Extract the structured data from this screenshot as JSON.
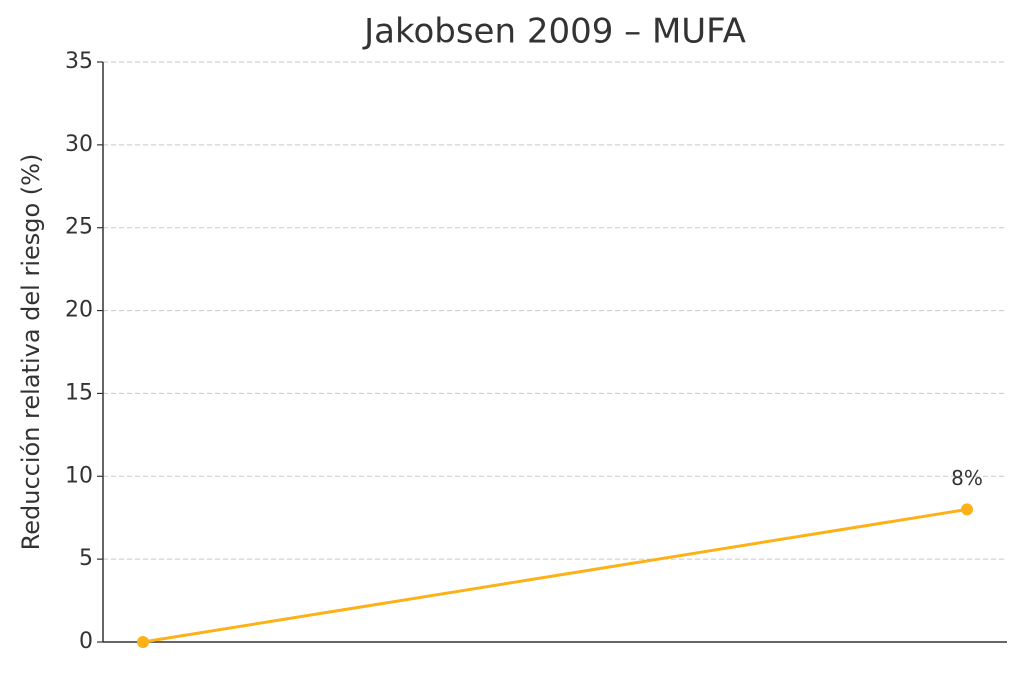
{
  "chart_data": {
    "type": "line",
    "title": "Jakobsen 2009 – MUFA",
    "y_label": "Reducción relativa del riesgo (%)",
    "categories": [
      null,
      null
    ],
    "series": [
      {
        "color": "#fbb117",
        "values": [
          0,
          8
        ],
        "value_labels": [
          null,
          "8%"
        ]
      }
    ],
    "ylim": [
      0,
      35
    ],
    "yticks": [
      0,
      5,
      10,
      15,
      20,
      25,
      30,
      35
    ],
    "grid": true
  }
}
